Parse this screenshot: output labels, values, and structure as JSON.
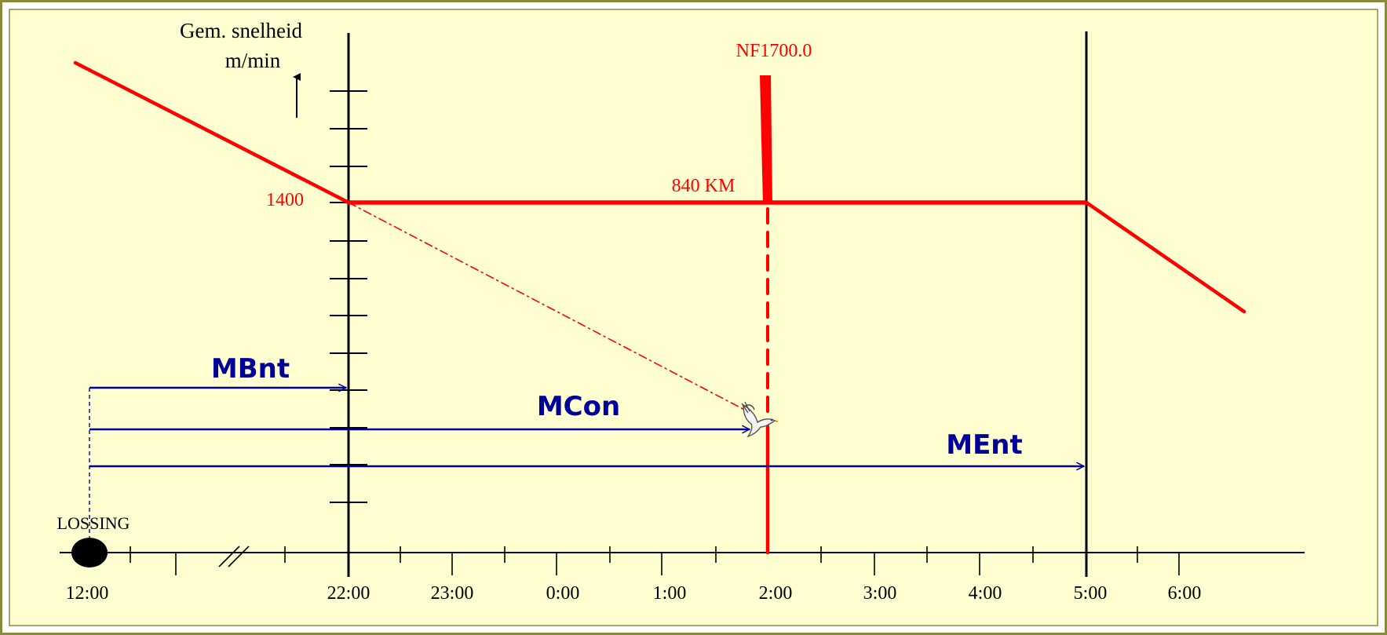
{
  "axis": {
    "y_label_line1": "Gem. snelheid",
    "y_label_line2": "m/min",
    "speed_value": "1400"
  },
  "annotations": {
    "nf_label": "NF1700.0",
    "km_label": "840 KM",
    "release_label": "LOSSING"
  },
  "arrows": {
    "mbnt": "MBnt",
    "mcon": "MCon",
    "ment": "MEnt"
  },
  "time_labels": [
    "12:00",
    "22:00",
    "23:00",
    "0:00",
    "1:00",
    "2:00",
    "3:00",
    "4:00",
    "5:00",
    "6:00"
  ],
  "icons": {
    "pigeon": "pigeon-icon",
    "release_marker": "filled-ellipse"
  },
  "colors": {
    "frame_background": "#fefed0",
    "frame_border": "#8a8a3a",
    "speed_line": "#ff0000",
    "arrow": "#000099",
    "axis": "#000000"
  }
}
